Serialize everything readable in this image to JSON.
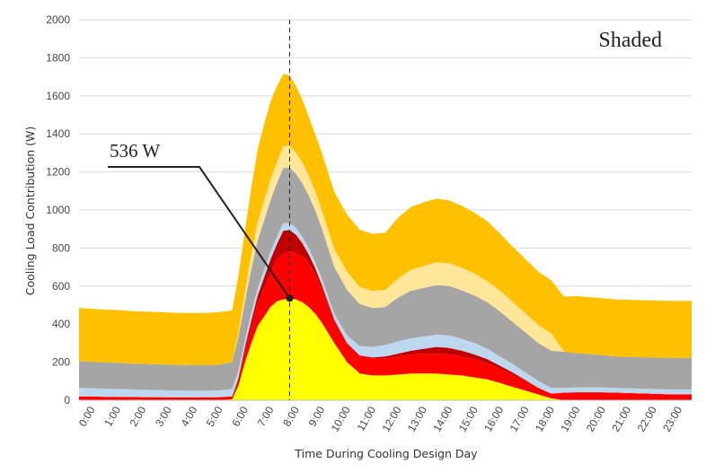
{
  "chart_data": {
    "type": "area",
    "stacked": true,
    "panel_label": "Shaded",
    "xlabel": "Time During Cooling Design Day",
    "ylabel": "Cooling Load  Contribution (W)",
    "ylim": [
      0,
      2000
    ],
    "yticks": [
      0,
      200,
      400,
      600,
      800,
      1000,
      1200,
      1400,
      1600,
      1800,
      2000
    ],
    "x_hours": [
      0,
      0.5,
      1,
      1.5,
      2,
      2.5,
      3,
      3.5,
      4,
      4.5,
      5,
      5.5,
      6,
      6.25,
      6.5,
      6.75,
      7,
      7.25,
      7.5,
      7.75,
      8,
      8.25,
      8.5,
      8.75,
      9,
      9.25,
      9.5,
      9.75,
      10,
      10.5,
      11,
      11.5,
      12,
      12.5,
      13,
      13.5,
      14,
      14.5,
      15,
      15.5,
      16,
      16.5,
      17,
      17.5,
      18,
      18.5,
      19,
      19.5,
      20,
      20.5,
      21,
      21.5,
      22,
      22.5,
      23,
      23.5
    ],
    "x_tick_labels": [
      "0:00",
      "1:00",
      "2:00",
      "3:00",
      "4:00",
      "5:00",
      "6:00",
      "7:00",
      "8:00",
      "9:00",
      "10:00",
      "11:00",
      "12:00",
      "13:00",
      "14:00",
      "15:00",
      "16:00",
      "17:00",
      "18:00",
      "19:00",
      "20:00",
      "21:00",
      "22:00",
      "23:00"
    ],
    "grid": true,
    "legend": "none",
    "series": [
      {
        "color": "#ffff00",
        "values": [
          0,
          0,
          0,
          0,
          0,
          0,
          0,
          0,
          0,
          0,
          0,
          0,
          5,
          80,
          200,
          300,
          390,
          440,
          490,
          520,
          530,
          535,
          530,
          515,
          490,
          455,
          410,
          355,
          300,
          200,
          140,
          130,
          130,
          135,
          140,
          140,
          140,
          135,
          130,
          120,
          110,
          90,
          70,
          50,
          30,
          10,
          0,
          0,
          0,
          0,
          0,
          0,
          0,
          0,
          0,
          0
        ]
      },
      {
        "color": "#ff0000",
        "values": [
          20,
          20,
          18,
          18,
          17,
          16,
          16,
          15,
          15,
          15,
          15,
          16,
          15,
          30,
          60,
          90,
          120,
          150,
          180,
          220,
          240,
          245,
          245,
          240,
          230,
          210,
          180,
          150,
          115,
          95,
          90,
          90,
          90,
          95,
          100,
          105,
          105,
          105,
          100,
          95,
          85,
          75,
          65,
          50,
          35,
          25,
          38,
          40,
          40,
          40,
          38,
          36,
          34,
          32,
          30,
          30
        ]
      },
      {
        "color": "#c00000",
        "values": [
          0,
          0,
          0,
          0,
          0,
          0,
          0,
          0,
          0,
          0,
          0,
          0,
          0,
          10,
          20,
          30,
          40,
          55,
          70,
          80,
          120,
          115,
          95,
          70,
          45,
          30,
          20,
          12,
          8,
          5,
          5,
          5,
          10,
          15,
          20,
          25,
          35,
          35,
          30,
          25,
          20,
          15,
          10,
          5,
          0,
          0,
          2,
          2,
          2,
          2,
          2,
          2,
          2,
          2,
          2,
          2
        ]
      },
      {
        "color": "#bdd7ee",
        "values": [
          45,
          43,
          42,
          41,
          40,
          39,
          38,
          37,
          36,
          35,
          35,
          36,
          40,
          40,
          40,
          40,
          40,
          40,
          40,
          40,
          40,
          38,
          36,
          35,
          35,
          33,
          33,
          32,
          32,
          40,
          50,
          55,
          60,
          65,
          65,
          65,
          65,
          65,
          63,
          60,
          55,
          50,
          45,
          40,
          35,
          30,
          25,
          25,
          25,
          25,
          25,
          25,
          25,
          25,
          25,
          25
        ]
      },
      {
        "color": "#a5a5a5",
        "values": [
          140,
          140,
          138,
          138,
          136,
          136,
          135,
          135,
          134,
          134,
          134,
          135,
          140,
          180,
          200,
          230,
          250,
          260,
          270,
          280,
          290,
          290,
          285,
          280,
          275,
          270,
          265,
          255,
          245,
          240,
          220,
          205,
          200,
          230,
          250,
          255,
          260,
          260,
          255,
          250,
          245,
          235,
          220,
          210,
          200,
          195,
          190,
          180,
          175,
          170,
          165,
          165,
          165,
          165,
          165,
          165
        ]
      },
      {
        "color": "#ffe699",
        "values": [
          0,
          0,
          0,
          0,
          0,
          0,
          0,
          0,
          0,
          0,
          0,
          0,
          2,
          20,
          50,
          80,
          100,
          105,
          110,
          110,
          115,
          115,
          110,
          110,
          105,
          100,
          95,
          95,
          95,
          95,
          90,
          90,
          90,
          100,
          110,
          115,
          120,
          120,
          118,
          115,
          110,
          110,
          105,
          100,
          95,
          90,
          0,
          0,
          0,
          0,
          0,
          0,
          0,
          0,
          0,
          0
        ]
      },
      {
        "color": "#ffc000",
        "values": [
          280,
          278,
          278,
          277,
          276,
          275,
          275,
          274,
          274,
          274,
          275,
          276,
          270,
          300,
          320,
          350,
          380,
          400,
          410,
          400,
          380,
          370,
          350,
          330,
          310,
          300,
          300,
          300,
          300,
          300,
          300,
          300,
          300,
          320,
          330,
          335,
          335,
          330,
          325,
          320,
          315,
          300,
          290,
          285,
          280,
          280,
          290,
          300,
          300,
          300,
          300,
          300,
          300,
          300,
          300,
          300
        ]
      }
    ],
    "annotations": [
      {
        "text": "536 W",
        "x_hour": 8.25,
        "y": 536
      }
    ],
    "reference_line_x_hour": 8.25
  }
}
